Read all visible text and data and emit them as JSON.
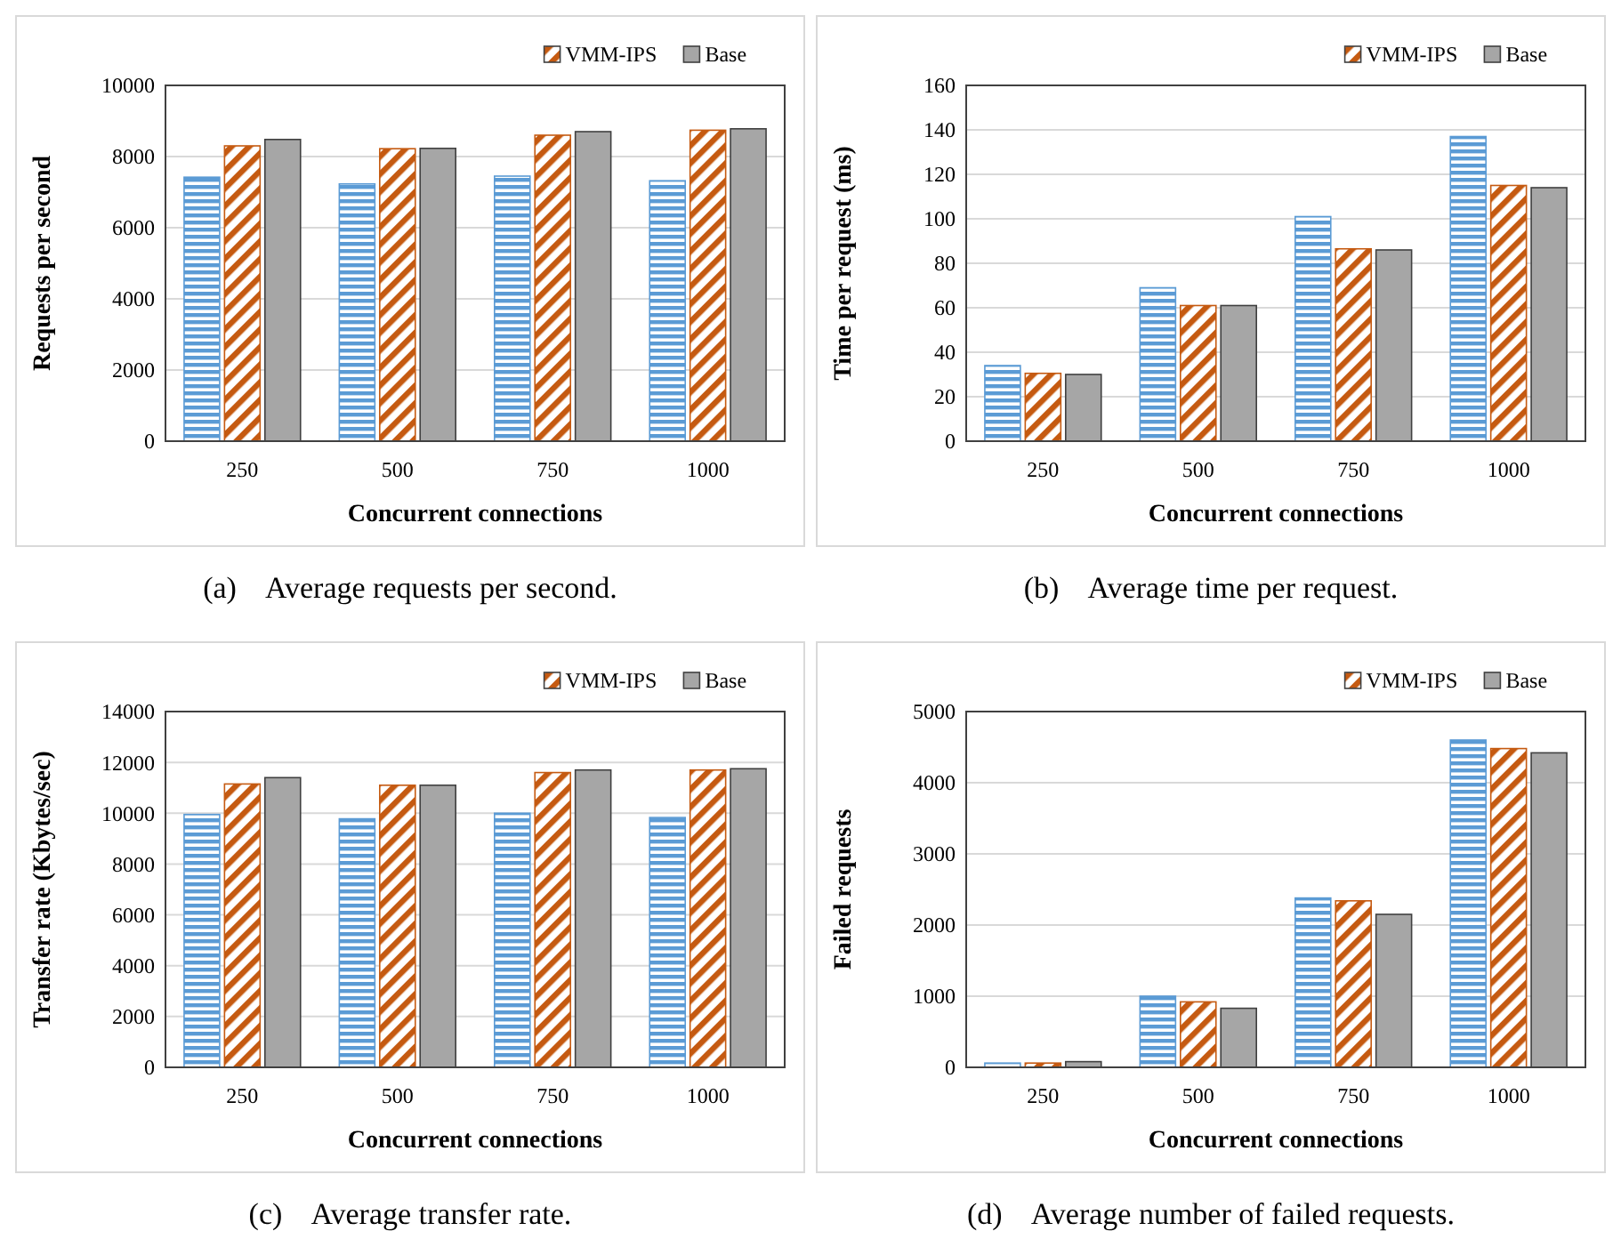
{
  "chart_data": [
    {
      "type": "bar",
      "xlabel": "Concurrent connections",
      "ylabel": "Requests per second",
      "categories": [
        "250",
        "500",
        "750",
        "1000"
      ],
      "ylim": [
        0,
        10000
      ],
      "yticks": [
        0,
        2000,
        4000,
        6000,
        8000,
        10000
      ],
      "grid": "y",
      "legend": "top right",
      "annotations": [
        "(a)    Average requests per second."
      ],
      "series": [
        {
          "color": "#5b9bd5",
          "values": [
            7420,
            7230,
            7450,
            7320
          ]
        },
        {
          "name": "VMM-IPS",
          "color": "#c55a11",
          "values": [
            8300,
            8220,
            8600,
            8740
          ]
        },
        {
          "name": "Base",
          "color": "#a6a6a6",
          "values": [
            8480,
            8230,
            8700,
            8780
          ]
        }
      ]
    },
    {
      "type": "bar",
      "xlabel": "Concurrent connections",
      "ylabel": "Time per request (ms)",
      "categories": [
        "250",
        "500",
        "750",
        "1000"
      ],
      "ylim": [
        0,
        160
      ],
      "yticks": [
        0,
        20,
        40,
        60,
        80,
        100,
        120,
        140,
        160
      ],
      "grid": "y",
      "legend": "top right",
      "annotations": [
        "(b)    Average time per request."
      ],
      "series": [
        {
          "color": "#5b9bd5",
          "values": [
            34,
            69,
            101,
            137
          ]
        },
        {
          "name": "VMM-IPS",
          "color": "#c55a11",
          "values": [
            30.5,
            61,
            86.5,
            115
          ]
        },
        {
          "name": "Base",
          "color": "#a6a6a6",
          "values": [
            30,
            61,
            86,
            114
          ]
        }
      ]
    },
    {
      "type": "bar",
      "xlabel": "Concurrent connections",
      "ylabel": "Transfer rate (Kbytes/sec)",
      "categories": [
        "250",
        "500",
        "750",
        "1000"
      ],
      "ylim": [
        0,
        14000
      ],
      "yticks": [
        0,
        2000,
        4000,
        6000,
        8000,
        10000,
        12000,
        14000
      ],
      "grid": "y",
      "legend": "top right",
      "annotations": [
        "(c)    Average transfer rate."
      ],
      "series": [
        {
          "color": "#5b9bd5",
          "values": [
            9950,
            9780,
            10000,
            9830
          ]
        },
        {
          "name": "VMM-IPS",
          "color": "#c55a11",
          "values": [
            11150,
            11100,
            11600,
            11700
          ]
        },
        {
          "name": "Base",
          "color": "#a6a6a6",
          "values": [
            11400,
            11100,
            11700,
            11750
          ]
        }
      ]
    },
    {
      "type": "bar",
      "xlabel": "Concurrent connections",
      "ylabel": "Failed requests",
      "categories": [
        "250",
        "500",
        "750",
        "1000"
      ],
      "ylim": [
        0,
        5000
      ],
      "yticks": [
        0,
        1000,
        2000,
        3000,
        4000,
        5000
      ],
      "grid": "y",
      "legend": "top right",
      "annotations": [
        "(d)    Average number of failed requests."
      ],
      "series": [
        {
          "color": "#5b9bd5",
          "values": [
            60,
            1000,
            2380,
            4600
          ]
        },
        {
          "name": "VMM-IPS",
          "color": "#c55a11",
          "values": [
            60,
            920,
            2340,
            4480
          ]
        },
        {
          "name": "Base",
          "color": "#a6a6a6",
          "values": [
            80,
            830,
            2150,
            4420
          ]
        }
      ]
    }
  ]
}
